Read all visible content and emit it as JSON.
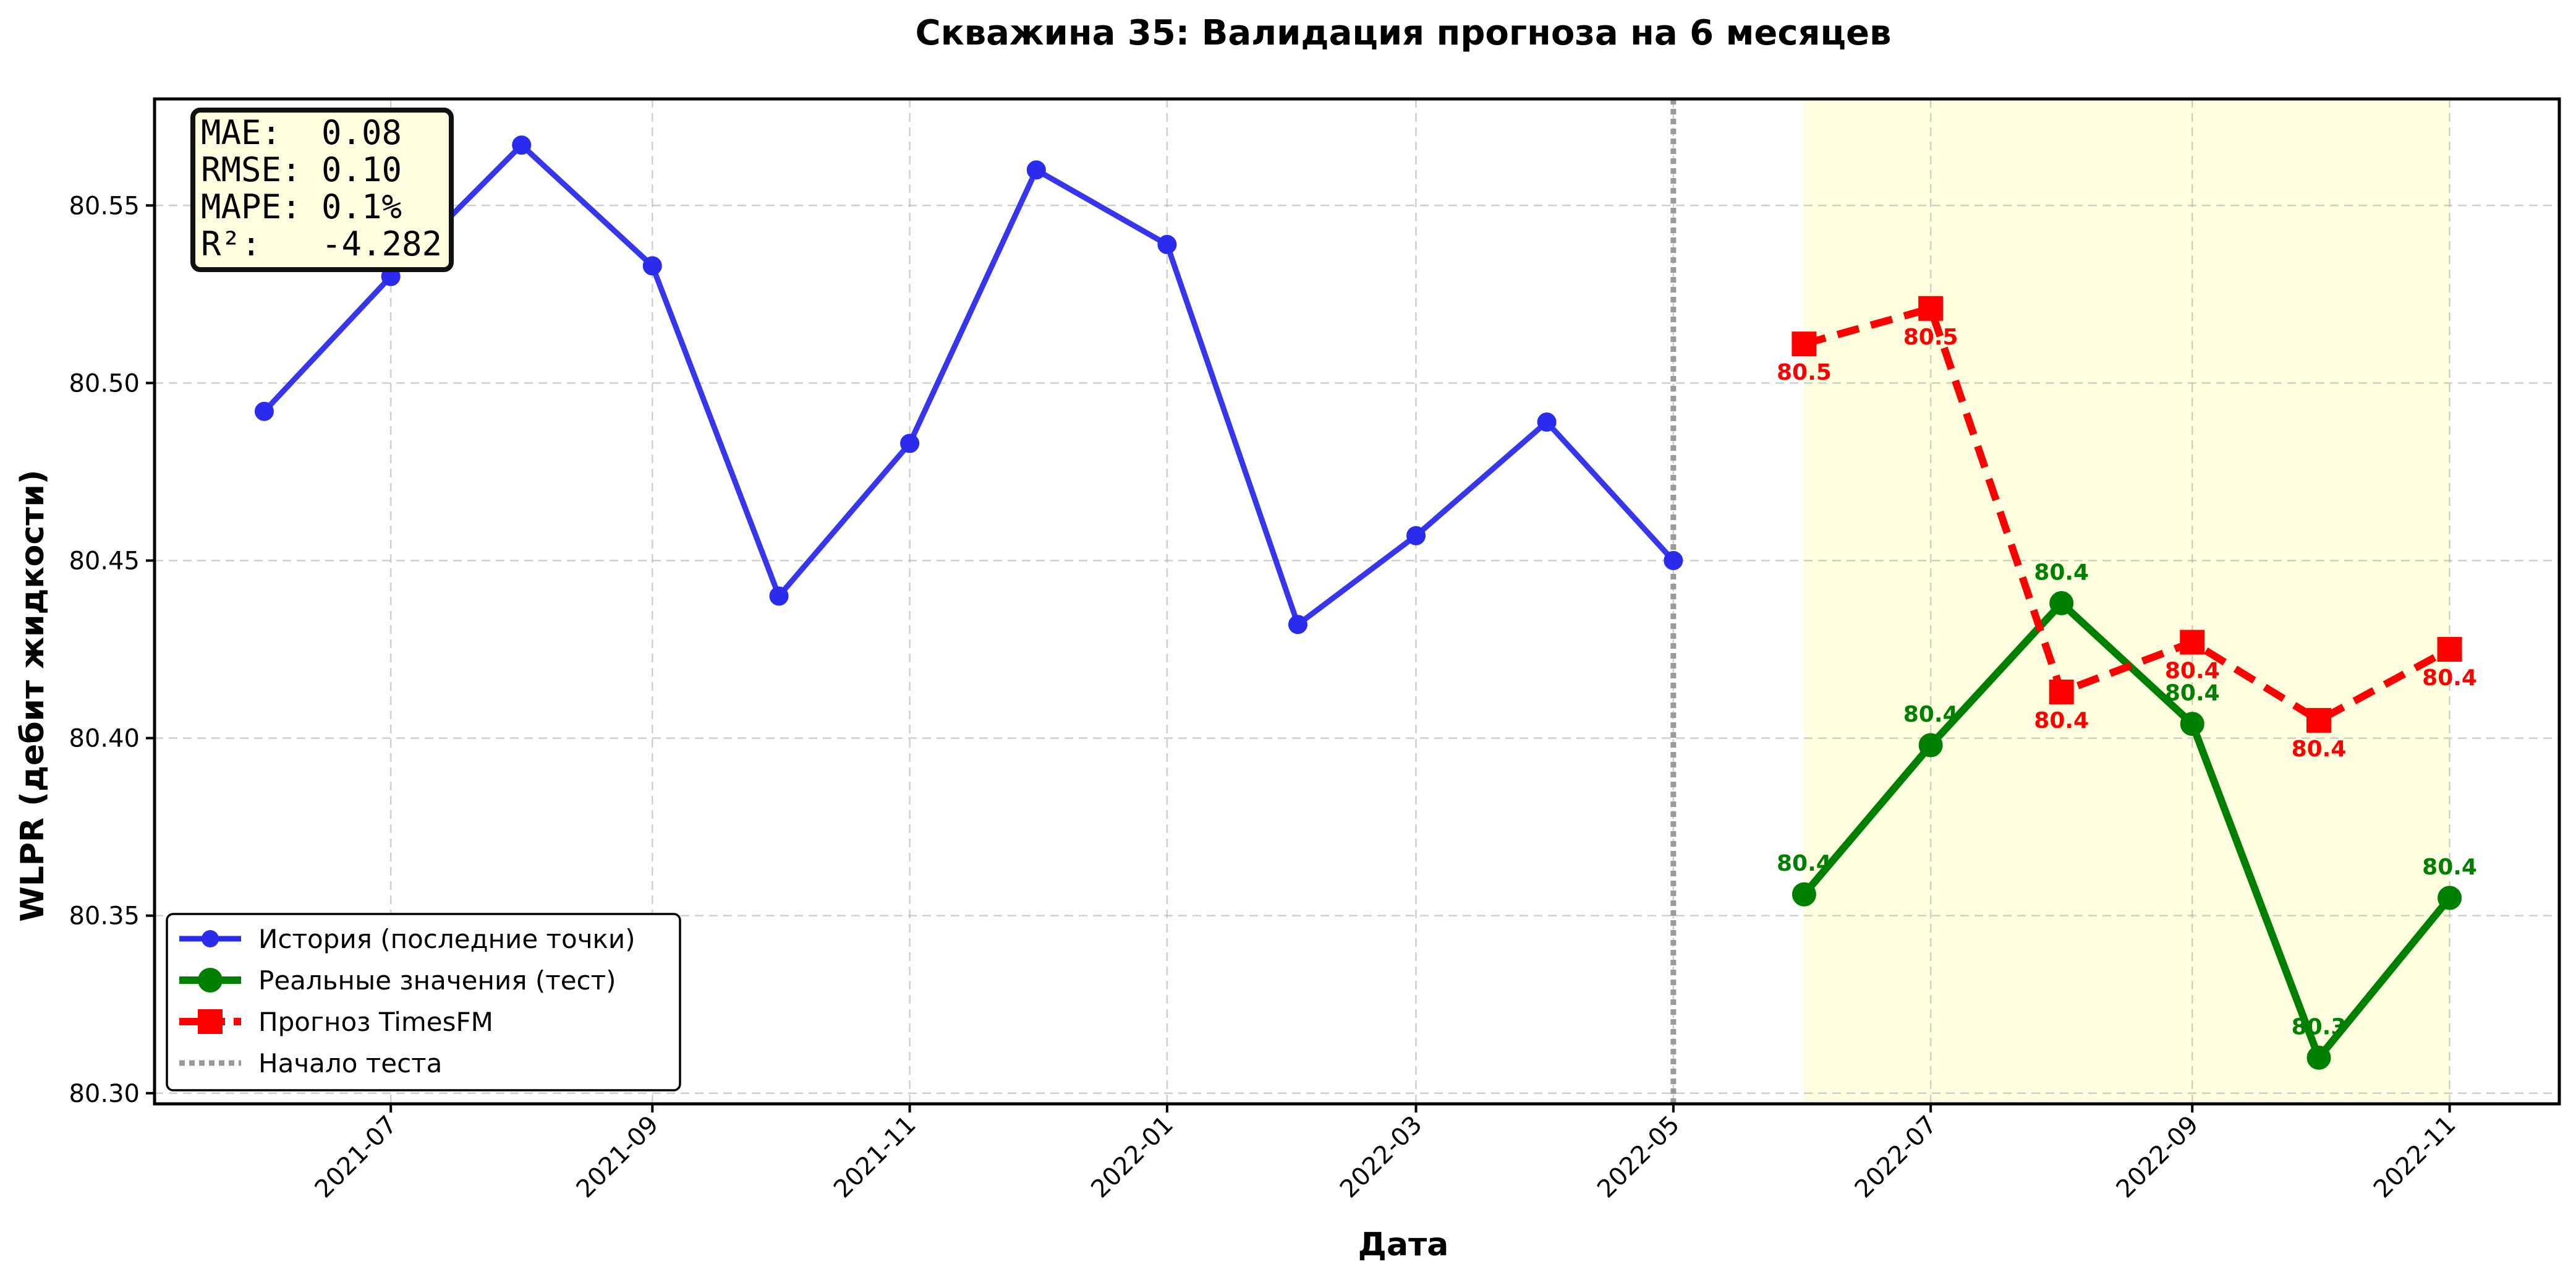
{
  "chart_data": {
    "type": "line",
    "title": "Скважина 35: Валидация прогноза на 6 месяцев",
    "xlabel": "Дата",
    "ylabel": "WLPR (дебит жидкости)",
    "x_range": [
      "2021-05-06",
      "2022-11-27"
    ],
    "ylim": [
      80.297,
      80.58
    ],
    "x_ticks": [
      "2021-07",
      "2021-09",
      "2021-11",
      "2022-01",
      "2022-03",
      "2022-05",
      "2022-07",
      "2022-09",
      "2022-11"
    ],
    "y_ticks": [
      "80.30",
      "80.35",
      "80.40",
      "80.45",
      "80.50",
      "80.55"
    ],
    "grid": true,
    "legend_position": "lower-left",
    "test_start": "2022-05-01",
    "test_region": [
      "2022-06-01",
      "2022-11-01"
    ],
    "series": [
      {
        "name": "История (последние точки)",
        "color": "#2b2bee",
        "style": "solid",
        "marker": "circle",
        "x": [
          "2021-06-01",
          "2021-07-01",
          "2021-08-01",
          "2021-09-01",
          "2021-10-01",
          "2021-11-01",
          "2021-12-01",
          "2022-01-01",
          "2022-02-01",
          "2022-03-01",
          "2022-04-01",
          "2022-05-01"
        ],
        "values": [
          80.492,
          80.53,
          80.567,
          80.533,
          80.44,
          80.483,
          80.56,
          80.539,
          80.432,
          80.457,
          80.489,
          80.45
        ],
        "labels": []
      },
      {
        "name": "Реальные значения (тест)",
        "color": "#008000",
        "style": "solid",
        "marker": "circle",
        "x": [
          "2022-06-01",
          "2022-07-01",
          "2022-08-01",
          "2022-09-01",
          "2022-10-01",
          "2022-11-01"
        ],
        "values": [
          80.356,
          80.398,
          80.438,
          80.404,
          80.31,
          80.355
        ],
        "labels": [
          "80.4",
          "80.4",
          "80.4",
          "80.4",
          "80.3",
          "80.4"
        ]
      },
      {
        "name": "Прогноз TimesFM",
        "color": "#ff0000",
        "style": "dashed",
        "marker": "square",
        "x": [
          "2022-06-01",
          "2022-07-01",
          "2022-08-01",
          "2022-09-01",
          "2022-10-01",
          "2022-11-01"
        ],
        "values": [
          80.511,
          80.521,
          80.413,
          80.427,
          80.405,
          80.425
        ],
        "labels": [
          "80.5",
          "80.5",
          "80.4",
          "80.4",
          "80.4",
          "80.4"
        ]
      }
    ],
    "legend_entries": [
      "История (последние точки)",
      "Реальные значения (тест)",
      "Прогноз TimesFM",
      "Начало теста"
    ],
    "metrics": [
      {
        "key": "MAE:",
        "value": "0.08"
      },
      {
        "key": "RMSE:",
        "value": "0.10"
      },
      {
        "key": "MAPE:",
        "value": "0.1%"
      },
      {
        "key": "R²:",
        "value": "-4.282"
      }
    ]
  }
}
